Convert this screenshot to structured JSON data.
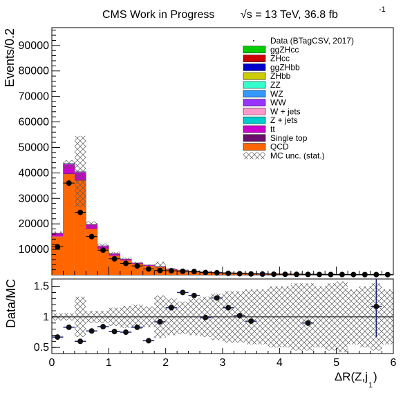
{
  "header": {
    "title": "CMS Work in Progress",
    "energy": "√s = 13 TeV, 36.8 fb",
    "lumi_exp": "-1"
  },
  "chart_data": {
    "type": "bar",
    "subtype": "stacked-histogram-with-ratio",
    "x_label": "ΔR(Z,j",
    "x_label_sub": "1",
    "x_label_close": ")",
    "xlim": [
      0,
      6
    ],
    "x_ticks": [
      "0",
      "1",
      "2",
      "3",
      "4",
      "5",
      "6"
    ],
    "top": {
      "ylabel": "Events/0.2",
      "ylim": [
        0,
        97000
      ],
      "y_ticks": [
        10000,
        20000,
        30000,
        40000,
        50000,
        60000,
        70000,
        80000,
        90000
      ],
      "y_tick_labels": [
        "10000",
        "20000",
        "30000",
        "40000",
        "50000",
        "60000",
        "70000",
        "80000",
        "90000"
      ],
      "bin_edges": [
        0.0,
        0.2,
        0.4,
        0.6,
        0.8,
        1.0,
        1.2,
        1.4,
        1.6,
        1.8,
        2.0,
        2.2,
        2.4,
        2.6,
        2.8,
        3.0,
        3.2,
        3.4,
        3.6,
        3.8,
        4.0,
        4.2,
        4.4,
        4.6,
        4.8,
        5.0,
        5.2,
        5.4,
        5.6,
        5.8,
        6.0
      ],
      "series": [
        {
          "name": "QCD",
          "color": "#ff6600",
          "values": [
            15000,
            39500,
            37000,
            18000,
            10200,
            7500,
            5600,
            4200,
            3500,
            3000,
            2000,
            1700,
            1300,
            1100,
            900,
            800,
            700,
            600,
            500,
            450,
            400,
            350,
            300,
            280,
            250,
            220,
            200,
            180,
            160,
            140
          ]
        },
        {
          "name": "Single top",
          "color": "#6b0d6b",
          "values": [
            100,
            300,
            300,
            150,
            100,
            80,
            60,
            50,
            40,
            30,
            25,
            20,
            15,
            12,
            10,
            8,
            7,
            6,
            5,
            5,
            4,
            4,
            3,
            3,
            3,
            2,
            2,
            2,
            2,
            2
          ]
        },
        {
          "name": "tt",
          "color": "#cc00cc",
          "values": [
            1200,
            3600,
            3000,
            1600,
            1000,
            700,
            500,
            400,
            300,
            250,
            180,
            140,
            110,
            90,
            75,
            60,
            50,
            45,
            40,
            35,
            30,
            28,
            25,
            22,
            20,
            18,
            16,
            15,
            14,
            12
          ]
        },
        {
          "name": "Z + jets",
          "color": "#00cccc",
          "values": [
            60,
            150,
            130,
            70,
            45,
            30,
            22,
            18,
            14,
            11,
            9,
            7,
            6,
            5,
            4,
            4,
            3,
            3,
            3,
            2,
            2,
            2,
            2,
            2,
            2,
            1,
            1,
            1,
            1,
            1
          ]
        },
        {
          "name": "W + jets",
          "color": "#ff99cc",
          "values": [
            40,
            100,
            90,
            50,
            30,
            20,
            15,
            12,
            10,
            8,
            6,
            5,
            4,
            3,
            3,
            3,
            2,
            2,
            2,
            2,
            2,
            1,
            1,
            1,
            1,
            1,
            1,
            1,
            1,
            1
          ]
        },
        {
          "name": "WW",
          "color": "#9933ff",
          "values": [
            20,
            50,
            45,
            25,
            15,
            10,
            8,
            6,
            5,
            4,
            3,
            3,
            2,
            2,
            2,
            2,
            1,
            1,
            1,
            1,
            1,
            1,
            1,
            1,
            1,
            1,
            1,
            1,
            1,
            1
          ]
        },
        {
          "name": "WZ",
          "color": "#3399ff",
          "values": [
            15,
            40,
            35,
            20,
            12,
            8,
            6,
            5,
            4,
            3,
            2,
            2,
            2,
            1,
            1,
            1,
            1,
            1,
            1,
            1,
            1,
            1,
            1,
            1,
            1,
            1,
            1,
            1,
            1,
            1
          ]
        },
        {
          "name": "ZZ",
          "color": "#33ffcc",
          "values": [
            10,
            25,
            22,
            12,
            8,
            5,
            4,
            3,
            2,
            2,
            2,
            1,
            1,
            1,
            1,
            1,
            1,
            1,
            1,
            1,
            1,
            1,
            1,
            1,
            1,
            1,
            1,
            1,
            1,
            1
          ]
        },
        {
          "name": "ZHbb",
          "color": "#cccc00",
          "values": [
            1,
            3,
            3,
            2,
            1,
            1,
            1,
            1,
            1,
            1,
            1,
            1,
            1,
            1,
            1,
            1,
            1,
            1,
            1,
            1,
            1,
            1,
            1,
            1,
            1,
            1,
            1,
            1,
            1,
            1
          ]
        },
        {
          "name": "ggZHbb",
          "color": "#0000cc",
          "values": [
            1,
            2,
            2,
            1,
            1,
            1,
            1,
            1,
            1,
            1,
            1,
            1,
            1,
            1,
            1,
            1,
            1,
            1,
            1,
            1,
            1,
            1,
            1,
            1,
            1,
            1,
            1,
            1,
            1,
            1
          ]
        },
        {
          "name": "ZHcc",
          "color": "#cc0000",
          "values": [
            1,
            2,
            2,
            1,
            1,
            1,
            1,
            1,
            1,
            1,
            1,
            1,
            1,
            1,
            1,
            1,
            1,
            1,
            1,
            1,
            1,
            1,
            1,
            1,
            1,
            1,
            1,
            1,
            1,
            1
          ]
        },
        {
          "name": "ggZHcc",
          "color": "#00cc00",
          "values": [
            1,
            1,
            1,
            1,
            1,
            1,
            1,
            1,
            1,
            1,
            1,
            1,
            1,
            1,
            1,
            1,
            1,
            1,
            1,
            1,
            1,
            1,
            1,
            1,
            1,
            1,
            1,
            1,
            1,
            1
          ]
        }
      ],
      "mc_unc_upper": [
        17000,
        45000,
        54500,
        21000,
        12300,
        9000,
        6800,
        5000,
        4100,
        5200,
        2600,
        2100,
        1700,
        1500,
        1300,
        1150,
        1000,
        900,
        800,
        700,
        650,
        600,
        550,
        500,
        450,
        400,
        380,
        350,
        330,
        300
      ],
      "mc_unc_lower": [
        15800,
        41500,
        26500,
        18500,
        10700,
        7700,
        5700,
        4300,
        3500,
        1800,
        1600,
        1300,
        900,
        700,
        600,
        450,
        350,
        250,
        200,
        180,
        160,
        140,
        120,
        100,
        80,
        70,
        60,
        50,
        40,
        30
      ],
      "data_x": [
        0.1,
        0.3,
        0.5,
        0.7,
        0.9,
        1.1,
        1.3,
        1.5,
        1.7,
        1.9,
        2.1,
        2.3,
        2.5,
        2.7,
        2.9,
        3.1,
        3.3,
        3.5,
        3.7,
        3.9,
        4.1,
        4.3,
        4.5,
        4.7,
        4.9,
        5.1,
        5.3,
        5.5,
        5.7,
        5.9
      ],
      "data_y": [
        11000,
        36000,
        24500,
        15000,
        9700,
        6300,
        4500,
        3500,
        2300,
        1700,
        1600,
        1400,
        1300,
        900,
        800,
        600,
        450,
        350,
        300,
        250,
        220,
        190,
        170,
        150,
        130,
        120,
        110,
        100,
        90,
        80
      ]
    },
    "bottom": {
      "ylabel": "Data/MC",
      "ylim": [
        0.4,
        1.62
      ],
      "y_ticks": [
        0.5,
        1,
        1.5
      ],
      "y_tick_labels": [
        "0.5",
        "1",
        "1.5"
      ],
      "unc_upper": [
        1.06,
        1.06,
        1.33,
        1.1,
        1.1,
        1.15,
        1.18,
        1.2,
        1.17,
        1.35,
        1.3,
        1.25,
        1.3,
        1.33,
        1.38,
        1.42,
        1.42,
        1.45,
        1.45,
        1.5,
        1.5,
        1.55,
        1.55,
        1.5,
        1.55,
        1.58,
        1.45,
        1.5,
        1.55,
        1.45
      ],
      "unc_lower": [
        0.94,
        0.94,
        0.67,
        0.9,
        0.9,
        0.85,
        0.82,
        0.8,
        0.83,
        0.65,
        0.7,
        0.72,
        0.7,
        0.67,
        0.62,
        0.58,
        0.58,
        0.55,
        0.55,
        0.5,
        0.5,
        0.45,
        0.45,
        0.5,
        0.45,
        0.42,
        0.55,
        0.5,
        0.45,
        0.55
      ],
      "ratio_points": [
        {
          "x": 0.1,
          "y": 0.67,
          "err": 0.0
        },
        {
          "x": 0.3,
          "y": 0.83,
          "err": 0.0
        },
        {
          "x": 0.5,
          "y": 0.6,
          "err": 0.0
        },
        {
          "x": 0.7,
          "y": 0.77,
          "err": 0.0
        },
        {
          "x": 0.9,
          "y": 0.84,
          "err": 0.0
        },
        {
          "x": 1.1,
          "y": 0.76,
          "err": 0.0
        },
        {
          "x": 1.3,
          "y": 0.75,
          "err": 0.0
        },
        {
          "x": 1.5,
          "y": 0.83,
          "err": 0.0
        },
        {
          "x": 1.7,
          "y": 0.61,
          "err": 0.0
        },
        {
          "x": 1.9,
          "y": 0.92,
          "err": 0.0
        },
        {
          "x": 2.1,
          "y": 1.15,
          "err": 0.0
        },
        {
          "x": 2.3,
          "y": 1.4,
          "err": 0.0
        },
        {
          "x": 2.5,
          "y": 1.35,
          "err": 0.0
        },
        {
          "x": 2.7,
          "y": 0.99,
          "err": 0.0
        },
        {
          "x": 2.9,
          "y": 1.31,
          "err": 0.0
        },
        {
          "x": 3.1,
          "y": 1.15,
          "err": 0.0
        },
        {
          "x": 3.3,
          "y": 1.02,
          "err": 0.0
        },
        {
          "x": 3.5,
          "y": 0.93,
          "err": 0.0
        },
        {
          "x": 4.5,
          "y": 0.9,
          "err": 0.05
        },
        {
          "x": 5.7,
          "y": 1.17,
          "err": 0.5
        }
      ]
    },
    "legend": {
      "placement": "top-right",
      "entries": [
        {
          "name": "Data (BTagCSV, 2017)",
          "kind": "marker"
        },
        {
          "name": "ggZHcc",
          "kind": "box",
          "color": "#00cc00"
        },
        {
          "name": "ZHcc",
          "kind": "box",
          "color": "#cc0000"
        },
        {
          "name": "ggZHbb",
          "kind": "box",
          "color": "#0000cc"
        },
        {
          "name": "ZHbb",
          "kind": "box",
          "color": "#cccc00"
        },
        {
          "name": "ZZ",
          "kind": "box",
          "color": "#33ffcc"
        },
        {
          "name": "WZ",
          "kind": "box",
          "color": "#3399ff"
        },
        {
          "name": "WW",
          "kind": "box",
          "color": "#9933ff"
        },
        {
          "name": "W + jets",
          "kind": "box",
          "color": "#ff99cc"
        },
        {
          "name": "Z + jets",
          "kind": "box",
          "color": "#00cccc"
        },
        {
          "name": "tt",
          "kind": "box",
          "color": "#cc00cc"
        },
        {
          "name": "Single top",
          "kind": "box",
          "color": "#6b0d6b"
        },
        {
          "name": "QCD",
          "kind": "box",
          "color": "#ff6600"
        },
        {
          "name": "MC unc. (stat.)",
          "kind": "hatch"
        }
      ]
    }
  }
}
